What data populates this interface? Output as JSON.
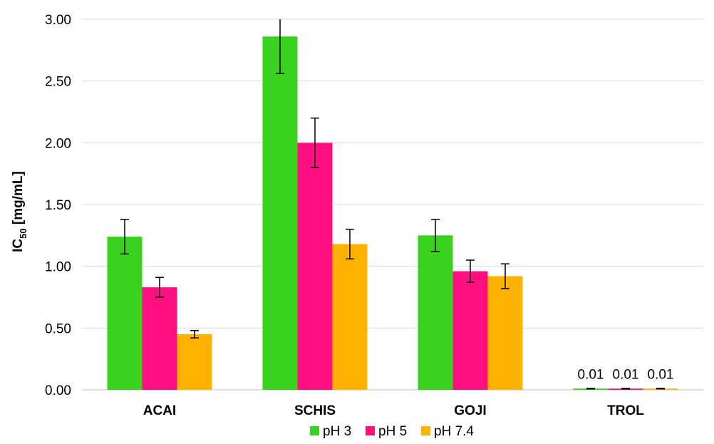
{
  "chart_data": {
    "type": "bar",
    "title": "",
    "xlabel": "",
    "ylabel": "IC",
    "ylabel_subscript": "50",
    "ylabel_unit": " [mg/mL]",
    "categories": [
      "ACAI",
      "SCHIS",
      "GOJI",
      "TROL"
    ],
    "ylim": [
      0,
      3.0
    ],
    "yticks": [
      "0.00",
      "0.50",
      "1.00",
      "1.50",
      "2.00",
      "2.50",
      "3.00"
    ],
    "grid": true,
    "legend_position": "bottom",
    "series": [
      {
        "name": "pH 3",
        "color": "#3ad11f",
        "values": [
          1.24,
          2.86,
          1.25,
          0.01
        ],
        "errors": [
          0.14,
          0.3,
          0.13,
          0.002
        ]
      },
      {
        "name": "pH 5",
        "color": "#ff0f80",
        "values": [
          0.83,
          2.0,
          0.96,
          0.01
        ],
        "errors": [
          0.08,
          0.2,
          0.09,
          0.002
        ]
      },
      {
        "name": "pH 7.4",
        "color": "#ffb300",
        "values": [
          0.45,
          1.18,
          0.92,
          0.01
        ],
        "errors": [
          0.03,
          0.12,
          0.1,
          0.002
        ]
      }
    ],
    "data_labels": {
      "TROL": [
        "0.01",
        "0.01",
        "0.01"
      ]
    }
  }
}
